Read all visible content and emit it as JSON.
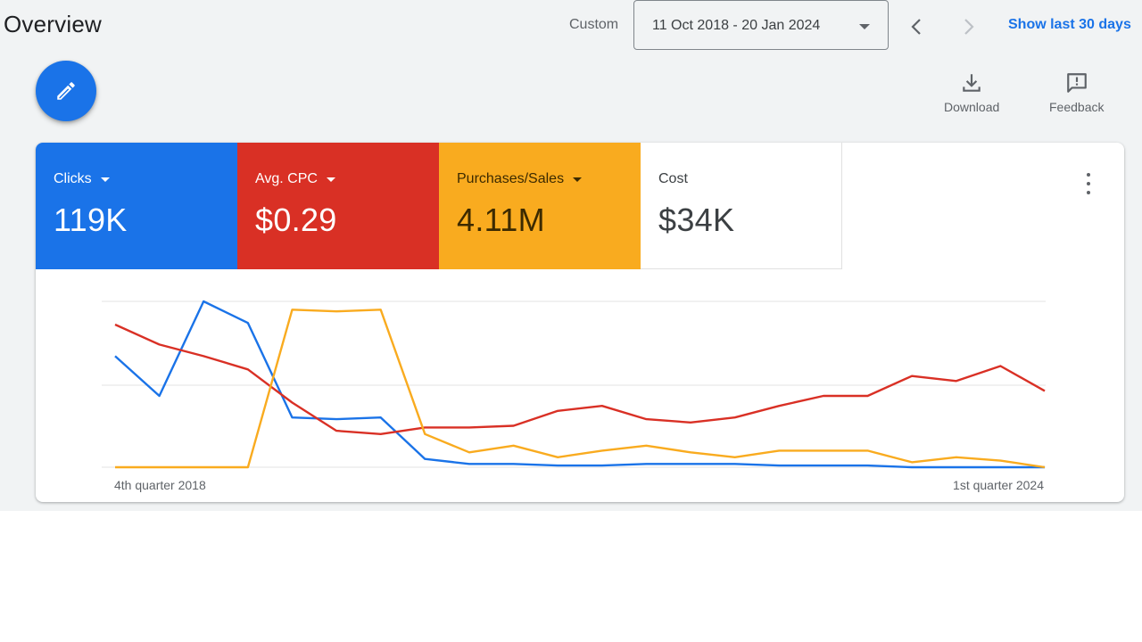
{
  "header": {
    "title": "Overview",
    "custom_label": "Custom",
    "date_range": "11 Oct 2018 - 20 Jan 2024",
    "show_last_label": "Show last 30 days"
  },
  "toolbar": {
    "download_label": "Download",
    "feedback_label": "Feedback"
  },
  "metrics": [
    {
      "label": "Clicks",
      "value": "119K",
      "color": "#1a73e8"
    },
    {
      "label": "Avg. CPC",
      "value": "$0.29",
      "color": "#d93025"
    },
    {
      "label": "Purchases/Sales",
      "value": "4.11M",
      "color": "#f9ab1f"
    },
    {
      "label": "Cost",
      "value": "$34K",
      "color": "#ffffff"
    }
  ],
  "chart_data": {
    "type": "line",
    "x_start_label": "4th quarter 2018",
    "x_end_label": "1st quarter 2024",
    "normalized": true,
    "series": [
      {
        "color": "#1a73e8",
        "values": [
          0.67,
          0.43,
          1.0,
          0.87,
          0.3,
          0.29,
          0.3,
          0.05,
          0.02,
          0.02,
          0.01,
          0.01,
          0.02,
          0.02,
          0.02,
          0.01,
          0.01,
          0.01,
          0.0,
          0.0,
          0.0,
          0.0
        ]
      },
      {
        "color": "#d93025",
        "values": [
          0.86,
          0.74,
          0.67,
          0.59,
          0.39,
          0.22,
          0.2,
          0.24,
          0.24,
          0.25,
          0.34,
          0.37,
          0.29,
          0.27,
          0.3,
          0.37,
          0.43,
          0.43,
          0.55,
          0.52,
          0.61,
          0.46
        ]
      },
      {
        "color": "#f9ab1f",
        "values": [
          0.0,
          0.0,
          0.0,
          0.0,
          0.95,
          0.94,
          0.95,
          0.2,
          0.09,
          0.13,
          0.06,
          0.1,
          0.13,
          0.09,
          0.06,
          0.1,
          0.1,
          0.1,
          0.03,
          0.06,
          0.04,
          0.0
        ]
      }
    ]
  }
}
